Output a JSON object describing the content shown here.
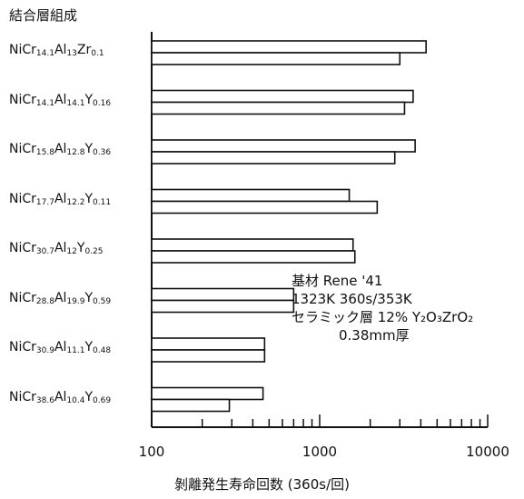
{
  "chart_data": {
    "type": "bar",
    "orientation": "horizontal",
    "x_scale": "log",
    "xlim": [
      100,
      10000
    ],
    "y_title": "結合層組成",
    "xlabel": "剝離発生寿命回数 (360s/回)",
    "x_ticks": [
      "100",
      "1000",
      "10000"
    ],
    "categories": [
      {
        "base": "NiCr",
        "parts": [
          [
            "Cr",
            "14.1"
          ],
          [
            "Al",
            "13"
          ],
          [
            "Zr",
            "0.1"
          ]
        ],
        "text": "NiCr14.1Al13Zr0.1"
      },
      {
        "base": "NiCr",
        "parts": [
          [
            "Cr",
            "14.1"
          ],
          [
            "Al",
            "14.1"
          ],
          [
            "Y",
            "0.16"
          ]
        ],
        "text": "NiCr14.1Al14.1Y0.16"
      },
      {
        "base": "NiCr",
        "parts": [
          [
            "Cr",
            "15.8"
          ],
          [
            "Al",
            "12.8"
          ],
          [
            "Y",
            "0.36"
          ]
        ],
        "text": "NiCr15.8Al12.8Y0.36"
      },
      {
        "base": "NiCr",
        "parts": [
          [
            "Cr",
            "17.7"
          ],
          [
            "Al",
            "12.2"
          ],
          [
            "Y",
            "0.11"
          ]
        ],
        "text": "NiCr17.7Al12.2Y0.11"
      },
      {
        "base": "NiCr",
        "parts": [
          [
            "Cr",
            "30.7"
          ],
          [
            "Al",
            "12"
          ],
          [
            "Y",
            "0.25"
          ]
        ],
        "text": "NiCr30.7Al12Y0.25"
      },
      {
        "base": "NiCr",
        "parts": [
          [
            "Cr",
            "28.8"
          ],
          [
            "Al",
            "19.9"
          ],
          [
            "Y",
            "0.59"
          ]
        ],
        "text": "NiCr28.8Al19.9Y0.59"
      },
      {
        "base": "NiCr",
        "parts": [
          [
            "Cr",
            "30.9"
          ],
          [
            "Al",
            "11.1"
          ],
          [
            "Y",
            "0.48"
          ]
        ],
        "text": "NiCr30.9Al11.1Y0.48"
      },
      {
        "base": "NiCr",
        "parts": [
          [
            "Cr",
            "38.6"
          ],
          [
            "Al",
            "10.4"
          ],
          [
            "Y",
            "0.69"
          ]
        ],
        "text": "NiCr38.6Al10.4Y0.69"
      }
    ],
    "series": [
      {
        "values": [
          4300,
          3600,
          3700,
          1500,
          1580,
          700,
          470,
          460
        ]
      },
      {
        "values": [
          3000,
          3200,
          2800,
          2200,
          1620,
          700,
          470,
          290
        ]
      }
    ],
    "annotation": {
      "line1": "基材 Rene '41",
      "line2": "1323K 360s/353K",
      "line3": "セラミック層 12% Y₂O₃ZrO₂",
      "line4": "0.38mm厚"
    }
  }
}
